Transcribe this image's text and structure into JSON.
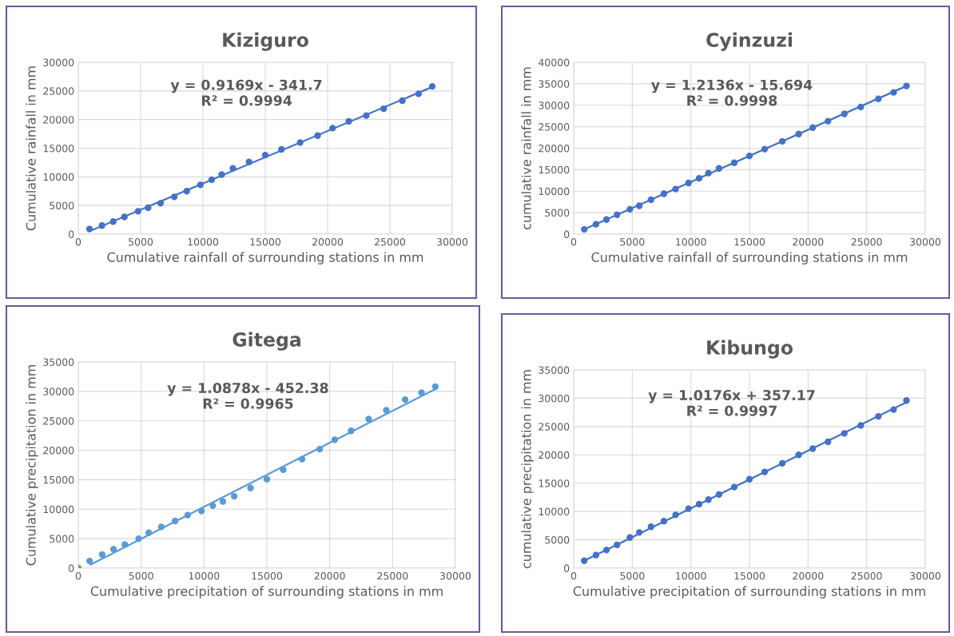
{
  "chart_data": [
    {
      "type": "scatter",
      "title": "Kiziguro",
      "xlabel": "Cumulative rainfall of surrounding stations in mm",
      "ylabel": "Cumulative rainfall in mm",
      "xlim": [
        0,
        30000
      ],
      "ylim": [
        0,
        30000
      ],
      "xticks": [
        0,
        5000,
        10000,
        15000,
        20000,
        25000,
        30000
      ],
      "yticks": [
        0,
        5000,
        10000,
        15000,
        20000,
        25000,
        30000
      ],
      "grid": true,
      "annotations": [
        "y = 0.9169x - 341.7\nR² = 0.9994"
      ],
      "series": [
        {
          "marker": "circle",
          "color": "#4472c4",
          "x": [
            900,
            1900,
            2800,
            3700,
            4800,
            5600,
            6600,
            7700,
            8700,
            9800,
            10700,
            11500,
            12400,
            13700,
            15000,
            16300,
            17800,
            19200,
            20400,
            21700,
            23100,
            24500,
            26000,
            27300,
            28400
          ],
          "values": [
            900,
            1500,
            2200,
            3000,
            4000,
            4600,
            5400,
            6500,
            7500,
            8600,
            9500,
            10400,
            11500,
            12600,
            13800,
            14800,
            16000,
            17200,
            18500,
            19700,
            20700,
            21900,
            23300,
            24500,
            25800
          ]
        },
        {
          "type": "line",
          "marker": "none",
          "color": "#4472c4",
          "x": [
            900,
            28400
          ],
          "values": [
            500,
            25700
          ]
        }
      ]
    },
    {
      "type": "scatter",
      "title": "Cyinzuzi",
      "xlabel": "Cumulative rainfall of surrounding stations in mm",
      "ylabel": "cumulative rainfall in mm",
      "xlim": [
        0,
        30000
      ],
      "ylim": [
        0,
        40000
      ],
      "xticks": [
        0,
        5000,
        10000,
        15000,
        20000,
        25000,
        30000
      ],
      "yticks": [
        0,
        5000,
        10000,
        15000,
        20000,
        25000,
        30000,
        35000,
        40000
      ],
      "grid": true,
      "annotations": [
        "y = 1.2136x - 15.694\nR² = 0.9998"
      ],
      "series": [
        {
          "marker": "circle",
          "color": "#4472c4",
          "x": [
            900,
            1900,
            2800,
            3700,
            4800,
            5600,
            6600,
            7700,
            8700,
            9800,
            10700,
            11500,
            12400,
            13700,
            15000,
            16300,
            17800,
            19200,
            20400,
            21700,
            23100,
            24500,
            26000,
            27300,
            28400
          ],
          "values": [
            1100,
            2300,
            3400,
            4500,
            5800,
            6600,
            8000,
            9400,
            10500,
            11900,
            13000,
            14200,
            15300,
            16600,
            18200,
            19800,
            21600,
            23300,
            24800,
            26300,
            28000,
            29600,
            31500,
            33000,
            34500
          ]
        },
        {
          "type": "line",
          "marker": "none",
          "color": "#4472c4",
          "x": [
            900,
            28400
          ],
          "values": [
            1100,
            34500
          ]
        }
      ]
    },
    {
      "type": "scatter",
      "title": "Gitega",
      "xlabel": "Cumulative precipitation of surrounding stations in mm",
      "ylabel": "Cumulative precipitation in mm",
      "xlim": [
        0,
        30000
      ],
      "ylim": [
        0,
        35000
      ],
      "xticks": [
        0,
        5000,
        10000,
        15000,
        20000,
        25000,
        30000
      ],
      "yticks": [
        0,
        5000,
        10000,
        15000,
        20000,
        25000,
        30000,
        35000
      ],
      "grid": true,
      "annotations": [
        "y = 1.0878x - 452.38\nR² = 0.9965"
      ],
      "series": [
        {
          "marker": "circle",
          "color": "#5b9bd5",
          "x": [
            900,
            1900,
            2800,
            3700,
            4800,
            5600,
            6600,
            7700,
            8700,
            9800,
            10700,
            11500,
            12400,
            13700,
            15000,
            16300,
            17800,
            19200,
            20400,
            21700,
            23100,
            24500,
            26000,
            27300,
            28400
          ],
          "values": [
            1200,
            2300,
            3200,
            4000,
            5000,
            6000,
            7000,
            8000,
            9000,
            9700,
            10600,
            11300,
            12200,
            13600,
            15100,
            16700,
            18500,
            20200,
            21800,
            23300,
            25300,
            26800,
            28600,
            29800,
            30800
          ]
        },
        {
          "marker": "circle",
          "color": "#70ad47",
          "x": [
            0
          ],
          "values": [
            0
          ]
        },
        {
          "type": "line",
          "marker": "none",
          "color": "#5b9bd5",
          "x": [
            1000,
            28400
          ],
          "values": [
            600,
            30400
          ]
        }
      ]
    },
    {
      "type": "scatter",
      "title": "Kibungo",
      "xlabel": "Cumulative precipitation of surrounding stations in mm",
      "ylabel": "cumulative precipitation in mm",
      "xlim": [
        0,
        30000
      ],
      "ylim": [
        0,
        35000
      ],
      "xticks": [
        0,
        5000,
        10000,
        15000,
        20000,
        25000,
        30000
      ],
      "yticks": [
        0,
        5000,
        10000,
        15000,
        20000,
        25000,
        30000,
        35000
      ],
      "grid": true,
      "annotations": [
        "y = 1.0176x + 357.17\nR² = 0.9997"
      ],
      "series": [
        {
          "marker": "circle",
          "color": "#4472c4",
          "x": [
            900,
            1900,
            2800,
            3700,
            4800,
            5600,
            6600,
            7700,
            8700,
            9800,
            10700,
            11500,
            12400,
            13700,
            15000,
            16300,
            17800,
            19200,
            20400,
            21700,
            23100,
            24500,
            26000,
            27300,
            28400
          ],
          "values": [
            1300,
            2300,
            3200,
            4100,
            5400,
            6300,
            7300,
            8300,
            9400,
            10500,
            11300,
            12100,
            13000,
            14300,
            15700,
            17000,
            18500,
            20000,
            21100,
            22300,
            23800,
            25200,
            26800,
            28000,
            29600
          ]
        },
        {
          "type": "line",
          "marker": "none",
          "color": "#4472c4",
          "x": [
            900,
            28400
          ],
          "values": [
            1300,
            29300
          ]
        }
      ]
    }
  ]
}
